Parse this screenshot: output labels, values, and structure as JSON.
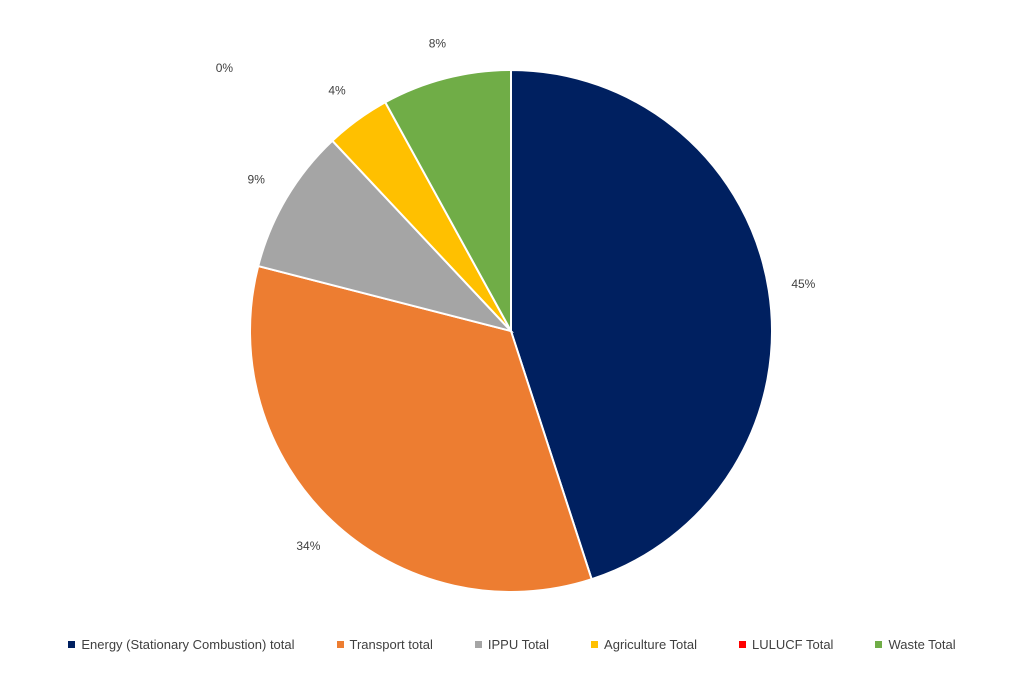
{
  "chart_data": {
    "type": "pie",
    "title": "",
    "legend_position": "bottom",
    "slices": [
      {
        "name": "Energy (Stationary Combustion) total",
        "value": 45,
        "label": "45%",
        "color": "#002060"
      },
      {
        "name": "Transport total",
        "value": 34,
        "label": "34%",
        "color": "#ED7D31"
      },
      {
        "name": "IPPU Total",
        "value": 9,
        "label": "9%",
        "color": "#A5A5A5"
      },
      {
        "name": "Agriculture Total",
        "value": 4,
        "label": "4%",
        "color": "#FFC000"
      },
      {
        "name": "LULUCF Total",
        "value": 0,
        "label": "0%",
        "color": "#FF0000"
      },
      {
        "name": "Waste Total",
        "value": 8,
        "label": "8%",
        "color": "#70AD47"
      }
    ]
  }
}
